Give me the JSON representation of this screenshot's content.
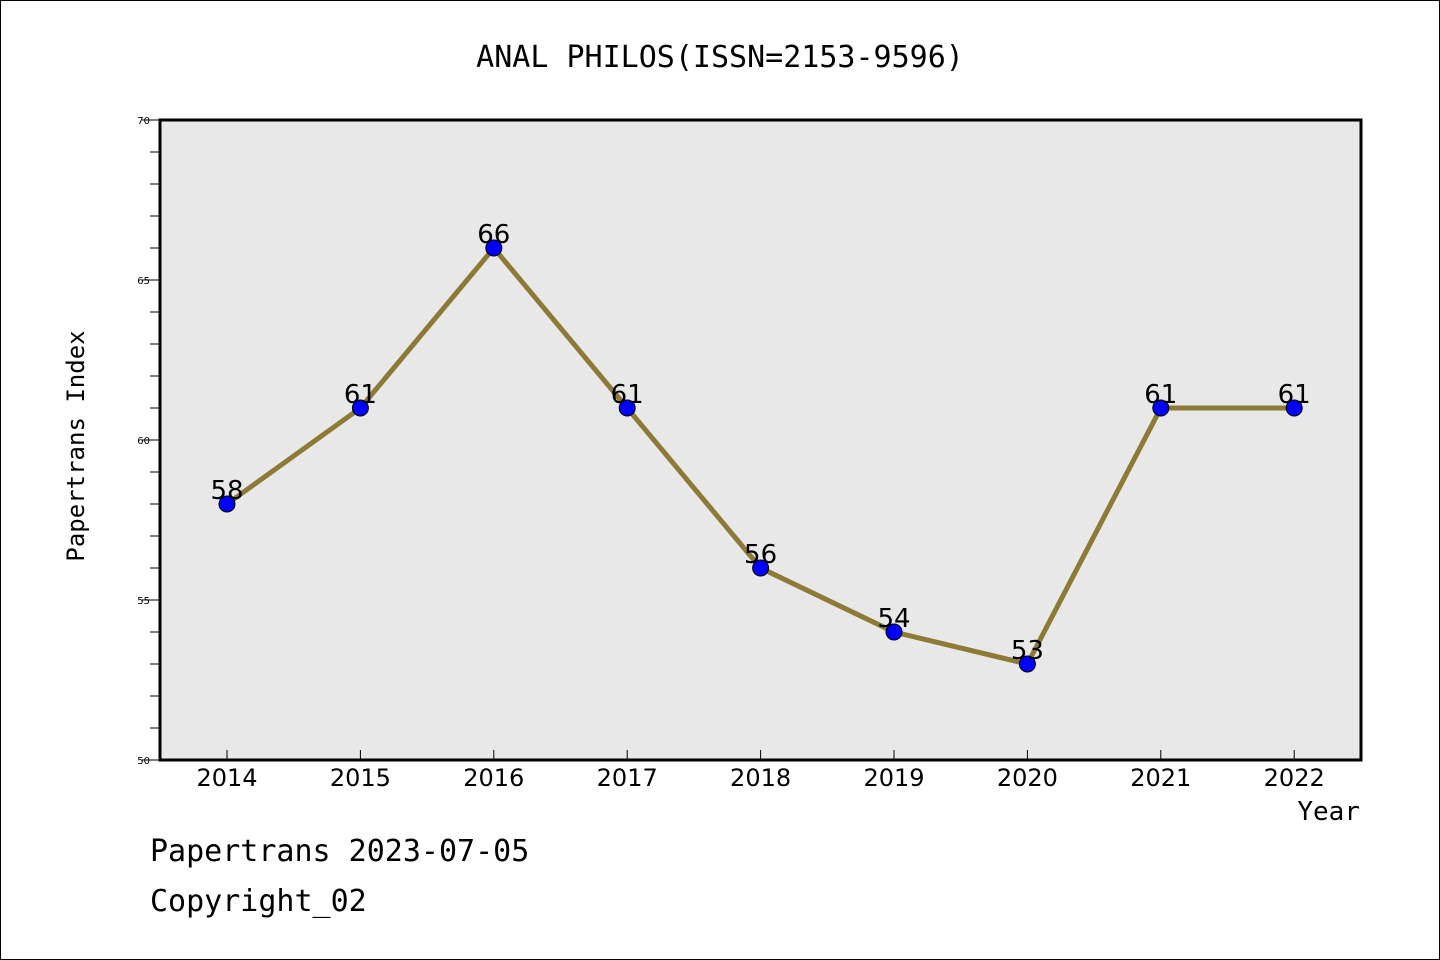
{
  "chart_data": {
    "type": "line",
    "title": "ANAL PHILOS(ISSN=2153-9596)",
    "xlabel": "Year",
    "ylabel": "Papertrans Index",
    "categories": [
      "2014",
      "2015",
      "2016",
      "2017",
      "2018",
      "2019",
      "2020",
      "2021",
      "2022"
    ],
    "series": [
      {
        "values": [
          58,
          61,
          66,
          61,
          56,
          54,
          53,
          61,
          61
        ]
      }
    ],
    "ylim": [
      50,
      70
    ],
    "yticks": [
      50,
      55,
      60,
      65,
      70
    ],
    "grid": false,
    "data_labels": true,
    "colors": {
      "line": "#8C7A36",
      "marker": "#0000FF",
      "plot_background": "#E8E8E8"
    }
  },
  "footer": {
    "line1": "Papertrans 2023-07-05",
    "line2": "Copyright_02"
  }
}
